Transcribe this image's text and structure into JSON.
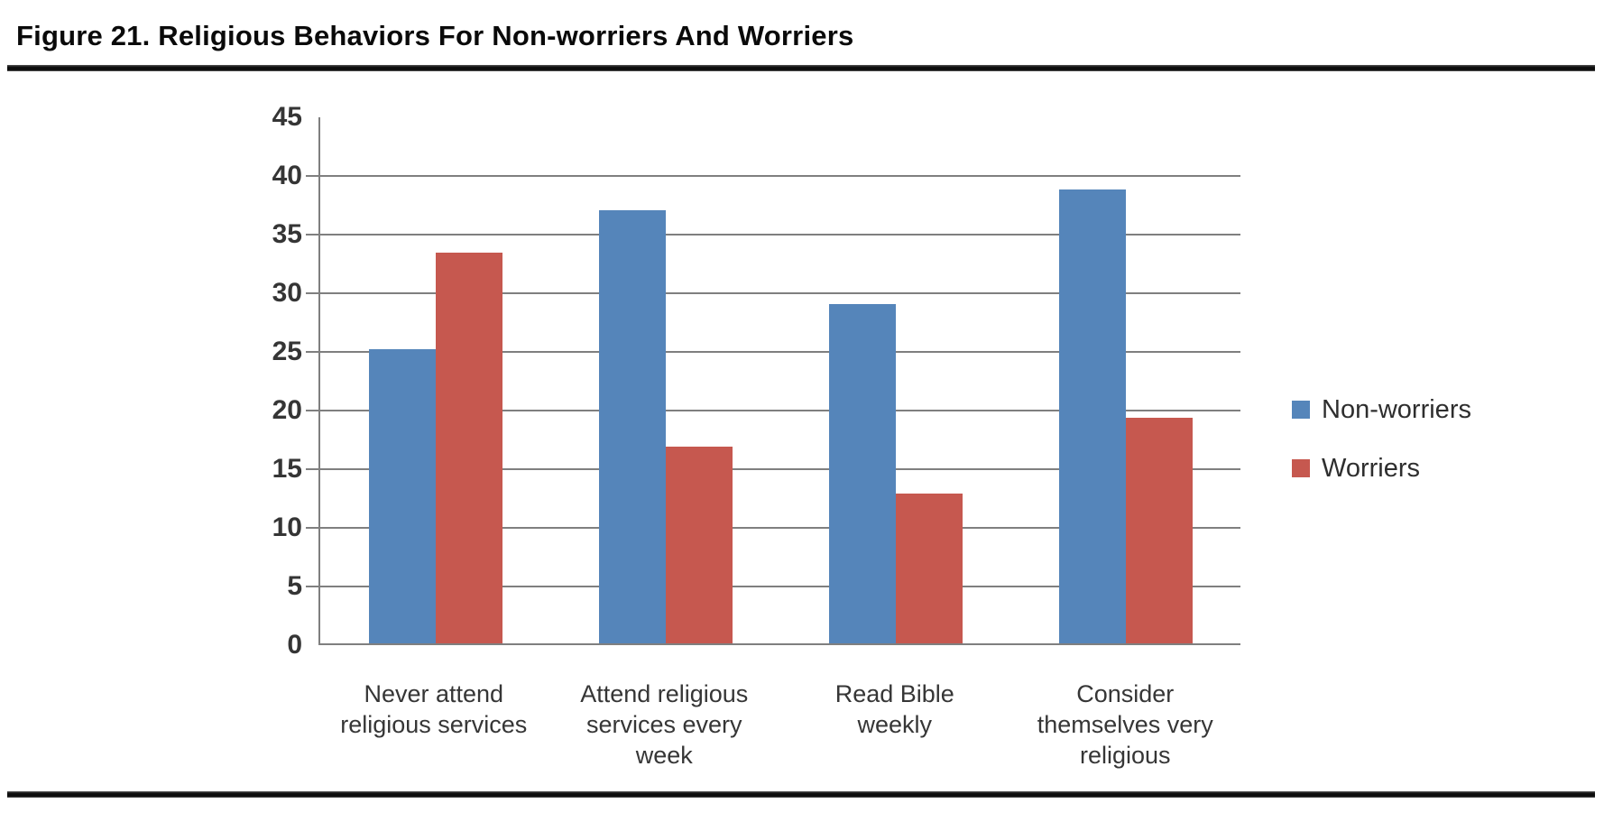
{
  "figure": {
    "title": "Figure 21. Religious Behaviors For Non-worriers And Worriers"
  },
  "chart_data": {
    "type": "bar",
    "title": "Figure 21. Religious Behaviors For Non-worriers And Worriers",
    "categories": [
      "Never attend\nreligious services",
      "Attend religious\nservices every\nweek",
      "Read Bible\nweekly",
      "Consider\nthemselves very\nreligious"
    ],
    "series": [
      {
        "name": "Non-worriers",
        "color": "#5585ba",
        "values": [
          25.1,
          36.9,
          28.9,
          38.7
        ]
      },
      {
        "name": "Worriers",
        "color": "#c6584f",
        "values": [
          33.3,
          16.8,
          12.8,
          19.2
        ]
      }
    ],
    "xlabel": "",
    "ylabel": "",
    "ylim": [
      0,
      45
    ],
    "ytick_step": 5,
    "grid": true,
    "gridline_color": "#7f7f7f",
    "legend_position": "right"
  }
}
